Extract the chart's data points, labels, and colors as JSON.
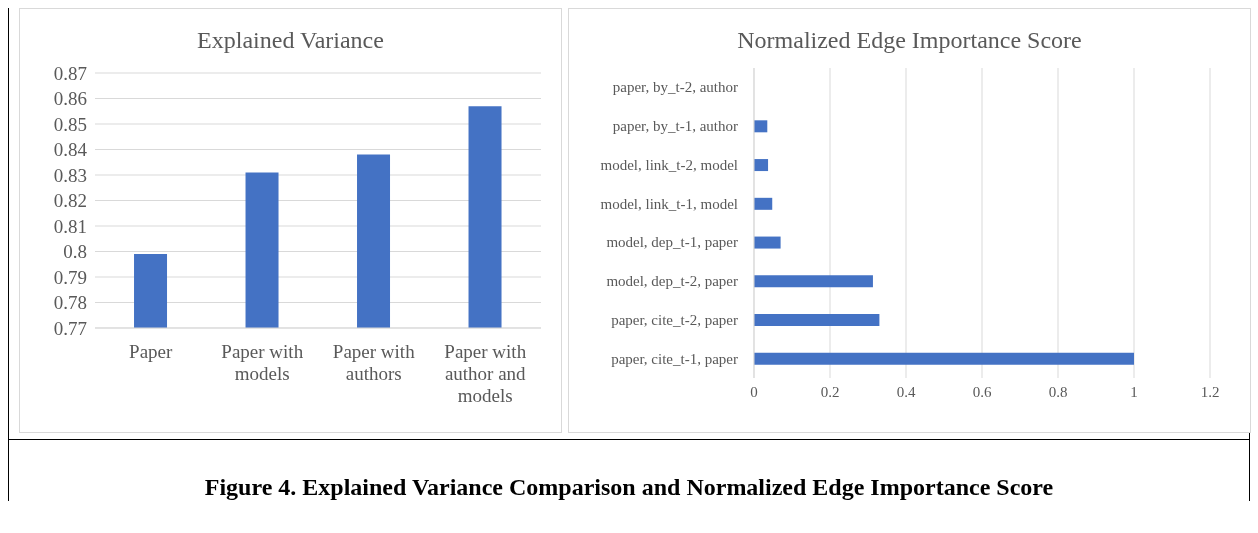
{
  "chart_data": [
    {
      "type": "bar",
      "title": "Explained Variance",
      "categories": [
        "Paper",
        "Paper with models",
        "Paper with authors",
        "Paper with author and models"
      ],
      "values": [
        0.799,
        0.831,
        0.838,
        0.857
      ],
      "color": "#4472c4",
      "ylim": [
        0.77,
        0.87
      ],
      "yticks": [
        0.77,
        0.78,
        0.79,
        0.8,
        0.81,
        0.82,
        0.83,
        0.84,
        0.85,
        0.86,
        0.87
      ],
      "grid": "y"
    },
    {
      "type": "bar",
      "orientation": "horizontal",
      "title": "Normalized Edge Importance Score",
      "categories": [
        "paper, by_t-2, author",
        "paper, by_t-1, author",
        "model, link_t-2, model",
        "model, link_t-1, model",
        "model, dep_t-1, paper",
        "model, dep_t-2, paper",
        "paper, cite_t-2, paper",
        "paper, cite_t-1, paper"
      ],
      "values": [
        0,
        0.035,
        0.037,
        0.048,
        0.07,
        0.313,
        0.33,
        1
      ],
      "color": "#4472c4",
      "xlim": [
        0,
        1.2
      ],
      "xticks": [
        0,
        0.2,
        0.4,
        0.6,
        0.8,
        1,
        1.2
      ],
      "grid": "x",
      "annotations": [
        "Figure 4. Explained Variance Comparison and Normalized Edge Importance Score"
      ]
    }
  ]
}
